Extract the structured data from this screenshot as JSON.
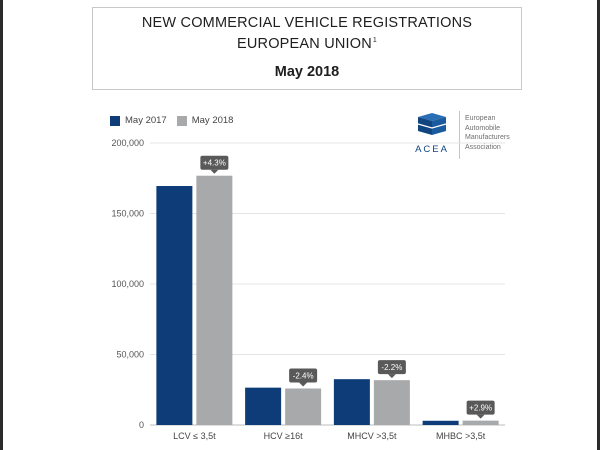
{
  "header": {
    "title_line1": "NEW COMMERCIAL VEHICLE REGISTRATIONS",
    "title_line2": "EUROPEAN UNION",
    "footnote_marker": "1",
    "subtitle": "May 2018"
  },
  "logo": {
    "wordmark": "ACEA",
    "org_line1": "European",
    "org_line2": "Automobile",
    "org_line3": "Manufacturers",
    "org_line4": "Association"
  },
  "colors": {
    "may2017": "#0d3c78",
    "may2018": "#a8a9ab",
    "callout": "#595959",
    "grid": "#e4e4e4"
  },
  "chart_data": {
    "type": "bar",
    "title": "NEW COMMERCIAL VEHICLE REGISTRATIONS EUROPEAN UNION",
    "subtitle": "May 2018",
    "categories": [
      "LCV ≤ 3,5t",
      "HCV ≥16t",
      "MHCV >3,5t",
      "MHBC >3,5t"
    ],
    "series": [
      {
        "name": "May 2017",
        "values": [
          169500,
          26500,
          32500,
          3000
        ]
      },
      {
        "name": "May 2018",
        "values": [
          176800,
          25900,
          31800,
          3100
        ]
      }
    ],
    "annotations": [
      "+4.3%",
      "-2.4%",
      "-2.2%",
      "+2.9%"
    ],
    "yticks": [
      "0",
      "50,000",
      "100,000",
      "150,000",
      "200,000"
    ],
    "ylim": [
      0,
      200000
    ],
    "grid": true,
    "legend_position": "top-left"
  }
}
